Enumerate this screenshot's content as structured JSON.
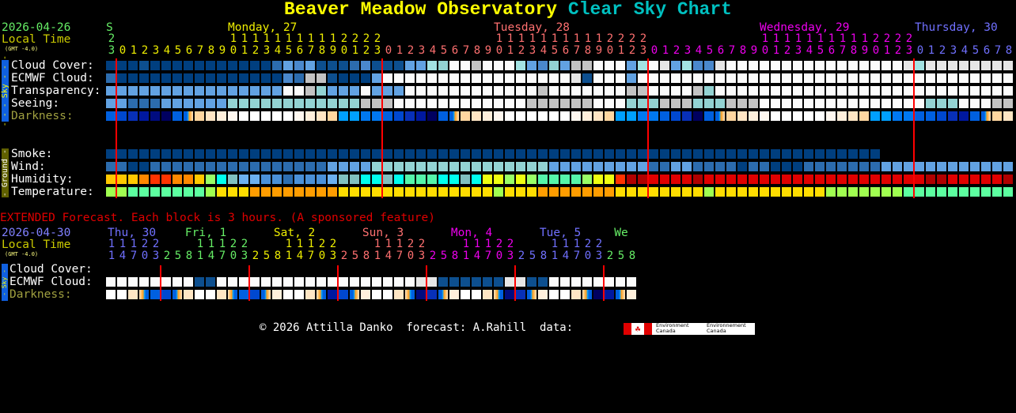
{
  "title": {
    "name": "Beaver Meadow Observatory",
    "suffix": "Clear Sky Chart"
  },
  "colors": {
    "title": "#ffff00",
    "suffix": "#00c0c0",
    "midnight_line": "#ff0000",
    "label": "#ffffff",
    "darkness_label": "#a0a040",
    "date": "#66ee66",
    "local_time": "#cccc00",
    "sky_bar": "#1060e0",
    "sky_text": "#ffff00",
    "ground_bar": "#606000",
    "ground_text": "#ffffff",
    "extended_title": "#e00000",
    "extended_date": "#8080ff"
  },
  "palettes": {
    "sky": {
      "D": "#003f7f",
      "E": "#0d4f8f",
      "M": "#2c6cae",
      "L": "#4a88cc",
      "P": "#62a2e2",
      "Q": "#a3e3e3",
      "C": "#93d3d3",
      "G": "#c3c3c3",
      "H": "#e6e6e6",
      "W": "#fbfbfb"
    },
    "dark": {
      "W": "#ffffff",
      "4": "#fff8f0",
      "3": "#fff0dc",
      "2": "#ffe6c4",
      "1": "#ffd7a0",
      "x": "#ffa020",
      "c": "#00a0ff",
      "a": "#0078f0",
      "b": "#0060e0",
      "d": "#0048d0",
      "e": "#0830b8",
      "f": "#0018a0",
      "g": "#000c80",
      "h": "#000060"
    },
    "humidity": {
      "y": "#ffc800",
      "o": "#ff8800",
      "r": "#ff3300",
      "g": "#99ff66",
      "c": "#00ffee",
      "t": "#80c0c0",
      "l": "#6cb0f0",
      "b": "#4a90d8",
      "m": "#2d6eb1",
      "e": "#eeff11",
      "n": "#55f5aa",
      "k": "#b00000",
      "R": "#e00000"
    },
    "temp": {
      "L": "#a0ff50",
      "N": "#5cffa0",
      "Y": "#ffdd00",
      "O": "#ff9d00"
    }
  },
  "main": {
    "date": "2026-04-26",
    "local_time": "Local Time",
    "gmt": "(GMT -4.0)",
    "days": [
      {
        "label": "S",
        "color": "#66ee66",
        "hours": [
          23
        ]
      },
      {
        "label": "Monday, 27",
        "color": "#eeee00",
        "hours": [
          0,
          1,
          2,
          3,
          4,
          5,
          6,
          7,
          8,
          9,
          10,
          11,
          12,
          13,
          14,
          15,
          16,
          17,
          18,
          19,
          20,
          21,
          22,
          23
        ]
      },
      {
        "label": "Tuesday, 28",
        "color": "#ff7070",
        "hours": [
          0,
          1,
          2,
          3,
          4,
          5,
          6,
          7,
          8,
          9,
          10,
          11,
          12,
          13,
          14,
          15,
          16,
          17,
          18,
          19,
          20,
          21,
          22,
          23
        ]
      },
      {
        "label": "Wednesday, 29",
        "color": "#ee00ee",
        "hours": [
          0,
          1,
          2,
          3,
          4,
          5,
          6,
          7,
          8,
          9,
          10,
          11,
          12,
          13,
          14,
          15,
          16,
          17,
          18,
          19,
          20,
          21,
          22,
          23
        ]
      },
      {
        "label": "Thursday, 30",
        "color": "#7070ff",
        "hours": [
          0,
          1,
          2,
          3,
          4,
          5,
          6,
          7,
          8
        ]
      }
    ],
    "sky_label": "- - - Sky - - -",
    "ground_label": "- Ground -",
    "sky_rows": [
      {
        "label": "Cloud Cover:",
        "palette": "sky",
        "cells": "DDDEDDDDDDDDDDDMPLPEEEMLEEEPPQCWWGWWWQPLCPGGWWWPQWHPQLLHWWWWWWWWWWWWWWWWHQHHHHHHHH"
      },
      {
        "label": "ECMWF Cloud:",
        "palette": "sky",
        "cells": "MDDDDDDDDDDDDDDDLMGGEDDDPWWWWWWWWWWWWWWWWWHEWWWPWWWWWWWWWWWWWWWWWWWWWWWWWWWWWWWWWW"
      },
      {
        "label": "Transparency:",
        "palette": "sky",
        "cells": "PPPPPPPPPPPPPPPPWWGCPPPWPPPWWWWWWWWWWWWGWWWWWWWGGWWWWGCWWWWWWWWWWWWWWWWWWWWWWWWWWW"
      },
      {
        "label": "Seeing:",
        "palette": "sky",
        "cells": "PPMMMPPPPPPCCCCCCCCCCCCGGGWWWWWWWWWWWWGGGGGGWWWCCCGGGCCCGGGWWWWWWWWWWWWWWWCCCWWWGG"
      },
      {
        "label": "Darkness:",
        "palette": "dark",
        "cells": "bdefghbo1234WWWWW4321ccaabdefhbo1234WWWWWW4321ccaabdehbo1234WWWWW4321ccaabbdefbo12",
        "dim": true
      }
    ],
    "ground_rows": [
      {
        "label": "Smoke:",
        "palette": "sky",
        "cells": "DDDDDDDDDDDDDDDDDDDDDDDDDDDDDDDDDDDDDDDDDDDDDDDDDDDDDDDDDDDDDDDDDDDDDD............"
      },
      {
        "label": "Wind:",
        "palette": "sky",
        "cells": "MMDDMMMMMMMMMMMMMMMMPPPPCCCCCCCCCCCCCCCCPPPPPPPPPMMPPMMMMDMMDDDMMMMMMMPPPPPPPPPPPP"
      },
      {
        "label": "Humidity:",
        "palette": "humidity",
        "cells": "yyyorrooygctllbbmbbblttcctcnnncctceegegnnnngeerkkRRRRkRRRRRRRRRRRRRRRRRRRRkkRRRRRk"
      },
      {
        "label": "Temperature:",
        "palette": "temp",
        "cells": "LLNNNNNNNLYYYOOOOOOOOYYYYYYYYYYYYYYLYYYOOOOOOOYYYYYYYYLYYYYYYYYYYLLLLLLLNNNNNNNNNN"
      }
    ]
  },
  "extended": {
    "heading": "EXTENDED Forecast. Each block is 3 hours. (A sponsored feature)",
    "date": "2026-04-30",
    "local_time": "Local Time",
    "gmt": "(GMT -4.0)",
    "days": [
      {
        "label": "Thu, 30",
        "color": "#7070ff",
        "hours": [
          11,
          14,
          17,
          20,
          23
        ]
      },
      {
        "label": "Fri, 1",
        "color": "#66ee66",
        "hours": [
          2,
          5,
          8,
          11,
          14,
          17,
          20,
          23
        ]
      },
      {
        "label": "Sat, 2",
        "color": "#eeee00",
        "hours": [
          2,
          5,
          8,
          11,
          14,
          17,
          20,
          23
        ]
      },
      {
        "label": "Sun, 3",
        "color": "#ff7070",
        "hours": [
          2,
          5,
          8,
          11,
          14,
          17,
          20,
          23
        ]
      },
      {
        "label": "Mon, 4",
        "color": "#ee00ee",
        "hours": [
          2,
          5,
          8,
          11,
          14,
          17,
          20,
          23
        ]
      },
      {
        "label": "Tue, 5",
        "color": "#7070ff",
        "hours": [
          2,
          5,
          8,
          11,
          14,
          17,
          20,
          23
        ]
      },
      {
        "label": "We",
        "color": "#66ee66",
        "hours": [
          2,
          5,
          8
        ]
      }
    ],
    "sky_label": "- Sky -",
    "rows": [
      {
        "label": "Cloud Cover:",
        "palette": "sky",
        "cells": "................................................"
      },
      {
        "label": "ECMWF Cloud:",
        "palette": "sky",
        "cells": "WWWWWWWWEEWWWWWWWWWWWWWWWWWWHHEEEEEEHHEEWWWWWWWW"
      },
      {
        "label": "Darkness:",
        "palette": "dark",
        "cells": "WW2tbdo2WW2tbdo3WW2tfdo3WW2tgeo3WW2tgeo3WW2thfo3",
        "dim": true
      }
    ]
  },
  "footer": {
    "credit": "© 2026 Attilla Danko  forecast: A.Rahill  data:",
    "logo_en": "Environment Canada",
    "logo_fr": "Environnement Canada"
  }
}
